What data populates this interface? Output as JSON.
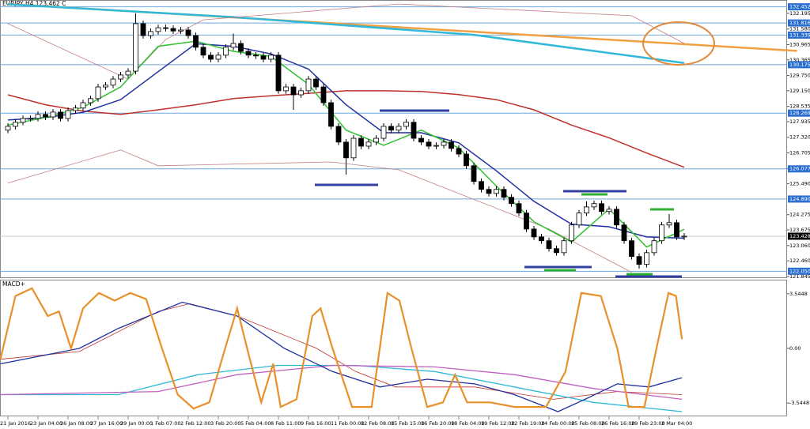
{
  "chart_data": [
    {
      "type": "candlestick",
      "title": "EURJPY,H4 123.462 C",
      "categories": [
        "21 Jan 2016",
        null,
        null,
        null,
        "23 Jan 04:00",
        null,
        null,
        null,
        "26 Jan 08:00",
        null,
        null,
        null,
        "27 Jan 16:00",
        null,
        null,
        null,
        "29 Jan 00:00",
        null,
        null,
        null,
        "1 Feb 07:00",
        null,
        null,
        null,
        "2 Feb 12:00",
        null,
        null,
        null,
        "3 Feb 20:00",
        null,
        null,
        null,
        "5 Feb 04:00",
        null,
        null,
        null,
        "8 Feb 11:00",
        null,
        null,
        null,
        "9 Feb 16:00",
        null,
        null,
        null,
        "11 Feb 00:00",
        null,
        null,
        null,
        "12 Feb 08:00",
        null,
        null,
        null,
        "15 Feb 15:00",
        null,
        null,
        null,
        "16 Feb 20:00",
        null,
        null,
        null,
        "18 Feb 04:00",
        null,
        null,
        null,
        "19 Feb 12:00",
        null,
        null,
        null,
        "22 Feb 19:00",
        null,
        null,
        null,
        "24 Feb 00:00",
        null,
        null,
        null,
        "25 Feb 08:00",
        null,
        null,
        null,
        "26 Feb 16:00",
        null,
        null,
        null,
        "29 Feb 23:00",
        null,
        null,
        null,
        "2 Mar 04:00",
        null,
        null
      ],
      "open": [
        127.6,
        127.75,
        127.91,
        128.06,
        128.06,
        128.22,
        128.12,
        128.31,
        128.06,
        128.37,
        128.47,
        128.68,
        128.84,
        129.3,
        129.37,
        129.61,
        129.77,
        129.92,
        131.79,
        131.32,
        131.48,
        131.63,
        131.6,
        131.5,
        131.54,
        131.32,
        130.86,
        130.55,
        130.39,
        130.55,
        130.86,
        131.01,
        130.7,
        130.55,
        130.52,
        130.39,
        130.55,
        129.15,
        129.3,
        128.99,
        129.15,
        129.61,
        129.3,
        128.68,
        127.75,
        127.13,
        126.51,
        127.28,
        126.97,
        127.13,
        127.28,
        127.75,
        127.6,
        127.75,
        127.91,
        127.28,
        127.13,
        126.97,
        127.0,
        127.13,
        126.88,
        126.66,
        126.2,
        125.58,
        125.27,
        125.11,
        125.27,
        124.96,
        124.71,
        124.34,
        123.71,
        123.4,
        123.25,
        122.94,
        122.78,
        123.25,
        123.87,
        124.34,
        124.58,
        124.71,
        124.4,
        124.49,
        123.87,
        123.25,
        122.63,
        122.32,
        122.78,
        123.25,
        123.87,
        123.96,
        123.4
      ],
      "high": [
        127.87,
        128.03,
        128.18,
        128.18,
        128.34,
        128.34,
        128.43,
        128.43,
        128.49,
        128.59,
        128.8,
        128.96,
        129.42,
        129.49,
        129.73,
        129.89,
        130.04,
        132.2,
        131.91,
        131.6,
        131.75,
        131.75,
        131.72,
        131.66,
        131.66,
        131.44,
        130.98,
        130.67,
        130.67,
        130.98,
        131.4,
        131.13,
        130.82,
        130.67,
        130.64,
        130.67,
        130.67,
        129.42,
        129.42,
        129.27,
        129.73,
        129.73,
        129.42,
        128.8,
        127.87,
        127.25,
        127.4,
        127.4,
        127.25,
        127.4,
        127.87,
        127.87,
        127.87,
        128.03,
        128.03,
        127.4,
        127.25,
        127.12,
        127.25,
        127.25,
        127.0,
        126.78,
        126.32,
        125.7,
        125.39,
        125.39,
        125.39,
        125.08,
        124.83,
        124.46,
        123.83,
        123.52,
        123.37,
        123.06,
        123.37,
        123.99,
        124.46,
        124.8,
        124.83,
        124.83,
        124.61,
        124.61,
        123.99,
        123.37,
        122.75,
        122.9,
        123.37,
        123.99,
        124.3,
        124.08,
        123.55
      ],
      "low": [
        127.48,
        127.63,
        127.79,
        127.94,
        127.94,
        128.0,
        128.0,
        127.94,
        127.94,
        128.25,
        128.35,
        128.56,
        128.72,
        129.18,
        129.25,
        129.49,
        129.65,
        129.8,
        131.2,
        131.2,
        131.36,
        131.48,
        131.38,
        131.38,
        131.2,
        130.74,
        130.43,
        130.27,
        130.27,
        130.43,
        130.74,
        130.58,
        130.43,
        130.4,
        130.27,
        130.27,
        129.03,
        129.03,
        128.4,
        128.87,
        129.03,
        129.18,
        128.56,
        127.63,
        127.01,
        125.85,
        126.39,
        126.85,
        126.85,
        127.01,
        127.16,
        127.48,
        127.48,
        127.63,
        127.16,
        127.01,
        126.85,
        126.85,
        126.88,
        126.76,
        126.54,
        126.08,
        125.46,
        125.15,
        124.99,
        124.99,
        124.84,
        124.59,
        124.22,
        123.59,
        123.28,
        123.13,
        122.82,
        122.66,
        122.66,
        123.13,
        123.75,
        124.22,
        124.46,
        124.28,
        124.28,
        123.75,
        123.13,
        122.51,
        122.15,
        122.2,
        122.66,
        123.13,
        123.75,
        123.28,
        123.28
      ],
      "close": [
        127.75,
        127.91,
        128.06,
        128.06,
        128.22,
        128.12,
        128.31,
        128.06,
        128.37,
        128.47,
        128.68,
        128.84,
        129.3,
        129.37,
        129.61,
        129.77,
        129.92,
        131.79,
        131.32,
        131.48,
        131.63,
        131.6,
        131.5,
        131.54,
        131.32,
        130.86,
        130.55,
        130.39,
        130.55,
        130.86,
        131.01,
        130.7,
        130.55,
        130.52,
        130.39,
        130.55,
        129.15,
        129.3,
        128.99,
        129.15,
        129.61,
        129.3,
        128.68,
        127.75,
        127.13,
        126.51,
        127.28,
        126.97,
        127.13,
        127.28,
        127.75,
        127.6,
        127.75,
        127.91,
        127.28,
        127.13,
        126.97,
        127.0,
        127.13,
        126.88,
        126.66,
        126.2,
        125.58,
        125.27,
        125.11,
        125.27,
        124.96,
        124.71,
        124.34,
        123.71,
        123.4,
        123.25,
        122.94,
        122.78,
        123.25,
        123.87,
        124.34,
        124.58,
        124.71,
        124.4,
        124.49,
        123.87,
        123.25,
        122.63,
        122.32,
        122.78,
        123.25,
        123.87,
        123.96,
        123.4,
        123.43
      ],
      "up_color": "#ffffff",
      "down_color": "#000000",
      "overlays": [
        {
          "color": "#f0a040",
          "x": [
            0,
            105
          ],
          "values": [
            132.56,
            130.72
          ]
        },
        {
          "color": "#30b8d8",
          "x": [
            0,
            30,
            62,
            90
          ],
          "values": [
            132.55,
            132.05,
            131.35,
            130.24
          ]
        },
        {
          "color": "#c08080",
          "x": [
            0,
            16,
            21,
            26,
            52,
            83,
            90
          ],
          "values": [
            131.79,
            129.61,
            131.17,
            131.94,
            132.56,
            132.1,
            131.01
          ]
        },
        {
          "color": "#c08080",
          "x": [
            0,
            15,
            20,
            43,
            52,
            72,
            83
          ],
          "values": [
            125.52,
            126.82,
            126.2,
            126.35,
            126.04,
            123.71,
            122.01
          ]
        },
        {
          "color": "#c0302a",
          "x": [
            0,
            5,
            10,
            15,
            20,
            25,
            30,
            35,
            40,
            45,
            50,
            55,
            60,
            65,
            70,
            75,
            80,
            85,
            90
          ],
          "values": [
            128.99,
            128.6,
            128.35,
            128.22,
            128.4,
            128.6,
            128.84,
            128.95,
            129.05,
            129.15,
            129.15,
            129.12,
            129.0,
            128.8,
            128.4,
            127.8,
            127.3,
            126.7,
            126.14
          ]
        },
        {
          "color": "#2030a0",
          "x": [
            0,
            5,
            10,
            15,
            20,
            25,
            30,
            35,
            40,
            45,
            50,
            55,
            60,
            65,
            70,
            75,
            80,
            85,
            90
          ],
          "values": [
            128.0,
            128.1,
            128.3,
            128.8,
            129.9,
            131.0,
            130.9,
            130.6,
            130.0,
            128.6,
            127.5,
            127.5,
            127.1,
            126.0,
            124.8,
            123.9,
            123.8,
            123.4,
            123.35
          ]
        },
        {
          "color": "#30c030",
          "x": [
            0,
            5,
            10,
            15,
            20,
            25,
            30,
            35,
            40,
            45,
            50,
            55,
            60,
            65,
            70,
            75,
            80,
            85,
            90
          ],
          "values": [
            127.8,
            128.1,
            128.5,
            129.3,
            130.9,
            131.1,
            130.7,
            130.5,
            129.4,
            127.6,
            127.0,
            127.6,
            126.9,
            125.4,
            124.0,
            123.2,
            124.5,
            123.0,
            123.7
          ]
        }
      ],
      "levels": [
        132.452,
        131.816,
        131.339,
        130.175,
        128.269,
        126.077,
        {
          "value": 124.89,
          "label": "124.890"
        },
        {
          "value": 122.05,
          "label": "122.050"
        }
      ],
      "level_color": "#6fa8dc",
      "last_price": 123.428,
      "ylim": [
        121.78,
        132.72
      ],
      "yticks": [
        132.195,
        {
          "value": 131.58,
          "label": "131.580"
        },
        130.965,
        130.365,
        {
          "value": 129.75,
          "label": "129.750"
        },
        {
          "value": 129.15,
          "label": "129.150"
        },
        128.535,
        127.935,
        {
          "value": 127.32,
          "label": "127.320"
        },
        126.705,
        {
          "value": 126.09,
          "label": "126.090"
        },
        {
          "value": 125.49,
          "label": "125.490"
        },
        124.275,
        123.675,
        {
          "value": 123.06,
          "label": "123.060"
        },
        {
          "value": 122.46,
          "label": "122.460"
        },
        121.845
      ]
    },
    {
      "type": "line",
      "title": "MACD+",
      "series": [
        {
          "color": "#c0302a",
          "x": [
            -1,
            9.5,
            20,
            24.2,
            30.5,
            41.1,
            46.3,
            51.6,
            62.1,
            72.6,
            81.1,
            89.7
          ],
          "values": [
            -0.7,
            -0.2,
            2.4,
            2.9,
            2.1,
            0,
            -1.5,
            -2.5,
            -2.5,
            -3.3,
            -2.8,
            -3.0
          ]
        },
        {
          "color": "#30b8d8",
          "x": [
            -1,
            14.7,
            25.3,
            35.8,
            46.3,
            56.8,
            67.4,
            77.9,
            89.7
          ],
          "values": [
            -3.0,
            -3.0,
            -1.7,
            -1.1,
            -1.1,
            -1.5,
            -2.5,
            -3.5,
            -4.1
          ]
        },
        {
          "color": "#c060c0",
          "x": [
            -1,
            20,
            30.5,
            43.2,
            56.8,
            67.4,
            77.9,
            89.7
          ],
          "values": [
            -3.0,
            -2.8,
            -1.7,
            -1.1,
            -1.2,
            -1.7,
            -2.6,
            -3.3
          ]
        },
        {
          "color": "#2030a0",
          "x": [
            -1,
            9.5,
            14.7,
            23.2,
            30.5,
            36.8,
            43.2,
            49.5,
            55.8,
            62.1,
            67.4,
            73.2,
            76.8,
            81.1,
            85.3,
            89.7
          ],
          "values": [
            -1.0,
            0,
            1.3,
            3.0,
            2.1,
            0,
            -1.5,
            -2.5,
            -2.0,
            -2.3,
            -3.0,
            -4.1,
            -3.3,
            -2.3,
            -2.5,
            -1.9
          ]
        },
        {
          "color": "#e8902a",
          "x": [
            -1,
            1,
            3.2,
            5.3,
            6.8,
            8.4,
            10,
            12.1,
            14.2,
            16.3,
            18.4,
            20.5,
            22.6,
            24.7,
            26.8,
            28.9,
            30.5,
            32.1,
            33.7,
            35.3,
            36.3,
            38.4,
            40.5,
            41.6,
            43.2,
            45.8,
            48.4,
            50.5,
            52.1,
            53.7,
            55.8,
            57.9,
            59.5,
            61.1,
            64.2,
            67.4,
            71.6,
            74.2,
            76.3,
            78.9,
            81.1,
            82.6,
            84.7,
            86.3,
            87.9,
            88.9,
            89.7
          ],
          "values": [
            -0.7,
            3.4,
            3.9,
            2.1,
            2.4,
            0,
            2.6,
            3.6,
            3.1,
            3.6,
            3.2,
            0,
            -3.0,
            -3.9,
            -3.5,
            0,
            2.6,
            -0.5,
            -3.5,
            -1.0,
            -3.8,
            -3.3,
            2.1,
            2.6,
            0,
            -3.8,
            -3.8,
            3.6,
            3.1,
            0,
            -3.8,
            -3.5,
            -1.7,
            -3.5,
            -3.5,
            -3.8,
            -3.8,
            -1.5,
            3.6,
            3.4,
            0,
            -3.8,
            -3.8,
            0,
            3.6,
            3.4,
            0.6
          ]
        }
      ],
      "ylim": [
        -4.41,
        4.41
      ],
      "yticks": [
        3.5448,
        {
          "value": 0,
          "label": "0.00"
        },
        -3.5448
      ]
    }
  ]
}
